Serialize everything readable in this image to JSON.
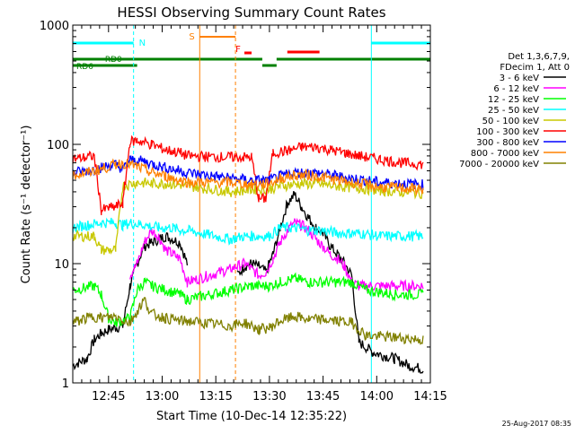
{
  "chart_data": {
    "type": "line",
    "title": "HESSI Observing Summary Count Rates",
    "xlabel": "Start Time (10-Dec-14 12:35:22)",
    "ylabel": "Count Rate (s⁻¹ detector⁻¹)",
    "yscale": "log",
    "ylim": [
      1,
      1000
    ],
    "xlim_minutes_after_1235": [
      0,
      100
    ],
    "x_tick_labels": [
      "12:45",
      "13:00",
      "13:15",
      "13:30",
      "13:45",
      "14:00",
      "14:15"
    ],
    "x_tick_minutes": [
      10,
      25,
      40,
      55,
      70,
      85,
      100
    ],
    "y_tick_labels": [
      "1",
      "10",
      "100",
      "1000"
    ],
    "y_tick_values": [
      1,
      10,
      100,
      1000
    ],
    "legend_header": [
      "Det 1,3,6,7,9,",
      "FDecim 1, Att 0"
    ],
    "legend_position": "right",
    "timestamp": "25-Aug-2017 08:35",
    "flags": [
      {
        "label": "N",
        "color": "#00ffff"
      },
      {
        "label": "S",
        "color": "#ff8000"
      },
      {
        "label": "F",
        "color": "#ff0000"
      },
      {
        "label": "RD0",
        "color": "#008000"
      },
      {
        "label": "RD6",
        "color": "#008000"
      }
    ],
    "series": [
      {
        "name": "3 - 6 keV",
        "color": "#000000",
        "points": [
          [
            0,
            1.4
          ],
          [
            4,
            1.6
          ],
          [
            6,
            2.3
          ],
          [
            8,
            2.6
          ],
          [
            10,
            2.8
          ],
          [
            12,
            2.9
          ],
          [
            14,
            3.0
          ],
          [
            16,
            6.5
          ],
          [
            18,
            10
          ],
          [
            20,
            14
          ],
          [
            22,
            15
          ],
          [
            24,
            16
          ],
          [
            26,
            17
          ],
          [
            28,
            16
          ],
          [
            30,
            15
          ],
          [
            32,
            10
          ],
          [
            38,
            0
          ],
          [
            44,
            0
          ],
          [
            46,
            8
          ],
          [
            48,
            9.5
          ],
          [
            50,
            10
          ],
          [
            52,
            9.5
          ],
          [
            54,
            8.5
          ],
          [
            56,
            12
          ],
          [
            58,
            20
          ],
          [
            60,
            32
          ],
          [
            62,
            38
          ],
          [
            64,
            30
          ],
          [
            66,
            24
          ],
          [
            68,
            20
          ],
          [
            70,
            18
          ],
          [
            72,
            14
          ],
          [
            74,
            12
          ],
          [
            76,
            10
          ],
          [
            78,
            8
          ],
          [
            80,
            2.2
          ],
          [
            84,
            1.8
          ],
          [
            90,
            1.6
          ],
          [
            94,
            1.4
          ],
          [
            98,
            1.3
          ]
        ]
      },
      {
        "name": "6 - 12 keV",
        "color": "#ff00ff",
        "points": [
          [
            16,
            8
          ],
          [
            18,
            10
          ],
          [
            20,
            15
          ],
          [
            22,
            19
          ],
          [
            24,
            17
          ],
          [
            26,
            13
          ],
          [
            28,
            12
          ],
          [
            30,
            11
          ],
          [
            32,
            7
          ],
          [
            44,
            9
          ],
          [
            46,
            9.5
          ],
          [
            48,
            10
          ],
          [
            50,
            9
          ],
          [
            52,
            8
          ],
          [
            54,
            8.5
          ],
          [
            56,
            11
          ],
          [
            58,
            15
          ],
          [
            60,
            19
          ],
          [
            62,
            22
          ],
          [
            64,
            21
          ],
          [
            66,
            19
          ],
          [
            68,
            16
          ],
          [
            70,
            14
          ],
          [
            72,
            12
          ],
          [
            74,
            11
          ],
          [
            76,
            9.5
          ],
          [
            78,
            7
          ],
          [
            80,
            6.5
          ],
          [
            90,
            6.5
          ],
          [
            98,
            6.5
          ]
        ]
      },
      {
        "name": "12 - 25 keV",
        "color": "#00ff00",
        "points": [
          [
            0,
            6
          ],
          [
            6,
            6.5
          ],
          [
            8,
            5.5
          ],
          [
            10,
            3.5
          ],
          [
            12,
            3.2
          ],
          [
            16,
            3.5
          ],
          [
            18,
            6
          ],
          [
            20,
            7
          ],
          [
            22,
            6.5
          ],
          [
            26,
            6
          ],
          [
            30,
            5.5
          ],
          [
            32,
            5
          ],
          [
            44,
            6
          ],
          [
            50,
            6.5
          ],
          [
            55,
            6.5
          ],
          [
            58,
            7
          ],
          [
            62,
            7.5
          ],
          [
            66,
            7
          ],
          [
            70,
            7
          ],
          [
            74,
            7
          ],
          [
            78,
            7
          ],
          [
            82,
            6
          ],
          [
            90,
            5.5
          ],
          [
            98,
            5.5
          ]
        ]
      },
      {
        "name": "25 - 50 keV",
        "color": "#00ffff",
        "points": [
          [
            0,
            20
          ],
          [
            4,
            21
          ],
          [
            8,
            22
          ],
          [
            12,
            22
          ],
          [
            14,
            21
          ],
          [
            16,
            22
          ],
          [
            20,
            21
          ],
          [
            24,
            20
          ],
          [
            28,
            20
          ],
          [
            30,
            19
          ],
          [
            32,
            19
          ],
          [
            44,
            16
          ],
          [
            48,
            17
          ],
          [
            52,
            17
          ],
          [
            55,
            17
          ],
          [
            58,
            20
          ],
          [
            62,
            20
          ],
          [
            66,
            19
          ],
          [
            70,
            19
          ],
          [
            74,
            18
          ],
          [
            78,
            18
          ],
          [
            80,
            18
          ],
          [
            86,
            17
          ],
          [
            92,
            17
          ],
          [
            98,
            17
          ]
        ]
      },
      {
        "name": "50 - 100 keV",
        "color": "#c8c800",
        "points": [
          [
            0,
            17
          ],
          [
            6,
            17
          ],
          [
            8,
            13
          ],
          [
            10,
            13
          ],
          [
            12,
            13
          ],
          [
            14,
            45
          ],
          [
            18,
            48
          ],
          [
            22,
            47
          ],
          [
            26,
            47
          ],
          [
            30,
            46
          ],
          [
            32,
            45
          ],
          [
            44,
            40
          ],
          [
            50,
            42
          ],
          [
            55,
            42
          ],
          [
            58,
            45
          ],
          [
            64,
            47
          ],
          [
            70,
            46
          ],
          [
            76,
            44
          ],
          [
            80,
            43
          ],
          [
            86,
            41
          ],
          [
            92,
            40
          ],
          [
            98,
            39
          ]
        ]
      },
      {
        "name": "100 - 300 keV",
        "color": "#ff0000",
        "points": [
          [
            0,
            75
          ],
          [
            4,
            78
          ],
          [
            6,
            80
          ],
          [
            8,
            28
          ],
          [
            10,
            29
          ],
          [
            12,
            30
          ],
          [
            14,
            32
          ],
          [
            16,
            105
          ],
          [
            18,
            108
          ],
          [
            22,
            100
          ],
          [
            26,
            90
          ],
          [
            30,
            85
          ],
          [
            32,
            80
          ],
          [
            44,
            78
          ],
          [
            50,
            78
          ],
          [
            52,
            35
          ],
          [
            54,
            35
          ],
          [
            56,
            85
          ],
          [
            60,
            88
          ],
          [
            64,
            95
          ],
          [
            68,
            95
          ],
          [
            72,
            90
          ],
          [
            76,
            85
          ],
          [
            80,
            80
          ],
          [
            86,
            75
          ],
          [
            92,
            70
          ],
          [
            98,
            68
          ]
        ]
      },
      {
        "name": "300 - 800 keV",
        "color": "#0000ff",
        "points": [
          [
            0,
            58
          ],
          [
            4,
            60
          ],
          [
            6,
            62
          ],
          [
            8,
            64
          ],
          [
            12,
            68
          ],
          [
            14,
            62
          ],
          [
            16,
            74
          ],
          [
            20,
            72
          ],
          [
            24,
            66
          ],
          [
            28,
            62
          ],
          [
            30,
            60
          ],
          [
            32,
            58
          ],
          [
            44,
            52
          ],
          [
            50,
            50
          ],
          [
            55,
            50
          ],
          [
            58,
            54
          ],
          [
            62,
            58
          ],
          [
            66,
            58
          ],
          [
            70,
            57
          ],
          [
            74,
            54
          ],
          [
            78,
            52
          ],
          [
            82,
            50
          ],
          [
            86,
            48
          ],
          [
            92,
            47
          ],
          [
            98,
            46
          ]
        ]
      },
      {
        "name": "800 - 7000 keV",
        "color": "#ff8000",
        "points": [
          [
            0,
            55
          ],
          [
            4,
            58
          ],
          [
            8,
            62
          ],
          [
            12,
            68
          ],
          [
            14,
            70
          ],
          [
            18,
            65
          ],
          [
            22,
            58
          ],
          [
            26,
            54
          ],
          [
            30,
            50
          ],
          [
            32,
            48
          ],
          [
            44,
            48
          ],
          [
            50,
            46
          ],
          [
            55,
            47
          ],
          [
            58,
            52
          ],
          [
            62,
            55
          ],
          [
            66,
            55
          ],
          [
            70,
            53
          ],
          [
            74,
            50
          ],
          [
            78,
            48
          ],
          [
            82,
            46
          ],
          [
            86,
            44
          ],
          [
            92,
            43
          ],
          [
            98,
            42
          ]
        ]
      },
      {
        "name": "7000 - 20000 keV",
        "color": "#808000",
        "points": [
          [
            0,
            3.2
          ],
          [
            4,
            3.5
          ],
          [
            6,
            3.6
          ],
          [
            8,
            3.5
          ],
          [
            12,
            3.6
          ],
          [
            16,
            3.2
          ],
          [
            18,
            4
          ],
          [
            20,
            5
          ],
          [
            22,
            3.8
          ],
          [
            26,
            3.5
          ],
          [
            30,
            3.3
          ],
          [
            32,
            3.3
          ],
          [
            44,
            3
          ],
          [
            48,
            3.2
          ],
          [
            52,
            2.8
          ],
          [
            55,
            2.9
          ],
          [
            58,
            3.3
          ],
          [
            62,
            3.6
          ],
          [
            66,
            3.4
          ],
          [
            70,
            3.4
          ],
          [
            74,
            3.3
          ],
          [
            78,
            3.2
          ],
          [
            82,
            2.5
          ],
          [
            90,
            2.4
          ],
          [
            98,
            2.3
          ]
        ]
      }
    ]
  }
}
